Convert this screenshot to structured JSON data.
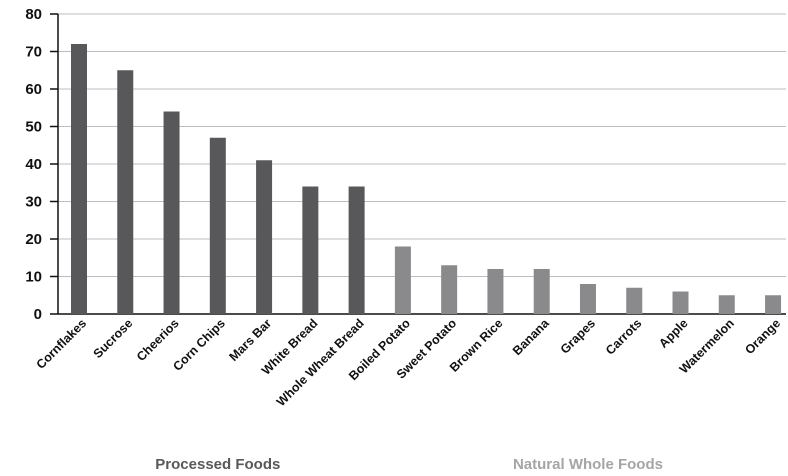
{
  "chart_data": {
    "type": "bar",
    "categories": [
      "Cornflakes",
      "Sucrose",
      "Cheerios",
      "Corn Chips",
      "Mars Bar",
      "White Bread",
      "Whole Wheat Bread",
      "Boiled Potato",
      "Sweet Potato",
      "Brown Rice",
      "Banana",
      "Grapes",
      "Carrots",
      "Apple",
      "Watermelon",
      "Orange"
    ],
    "values": [
      72,
      65,
      54,
      47,
      41,
      34,
      34,
      18,
      13,
      12,
      12,
      8,
      7,
      6,
      5,
      5
    ],
    "groups": [
      {
        "label": "Processed Foods",
        "count": 7,
        "color": "#58585a",
        "label_color": "#595959"
      },
      {
        "label": "Natural Whole Foods",
        "count": 9,
        "color": "#8a8a8c",
        "label_color": "#a5a5a5"
      }
    ],
    "yticks": [
      0,
      10,
      20,
      30,
      40,
      50,
      60,
      70,
      80
    ],
    "ylim": [
      0,
      80
    ],
    "grid": true,
    "legend": "none"
  }
}
